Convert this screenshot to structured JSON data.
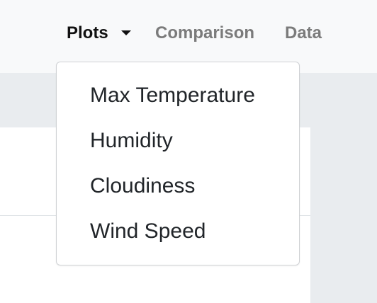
{
  "navbar": {
    "links": {
      "plots": "Plots",
      "comparison": "Comparison",
      "data": "Data"
    }
  },
  "dropdown": {
    "items": [
      "Max Temperature",
      "Humidity",
      "Cloudiness",
      "Wind Speed"
    ]
  },
  "icons": {
    "plots_dropdown": "caret-down-icon"
  },
  "colors": {
    "navbar_bg": "#f8f9fa",
    "page_bg": "#e9ecef",
    "active_link": "#111111",
    "inactive_link": "#7b7b7b",
    "menu_text": "#212529"
  }
}
